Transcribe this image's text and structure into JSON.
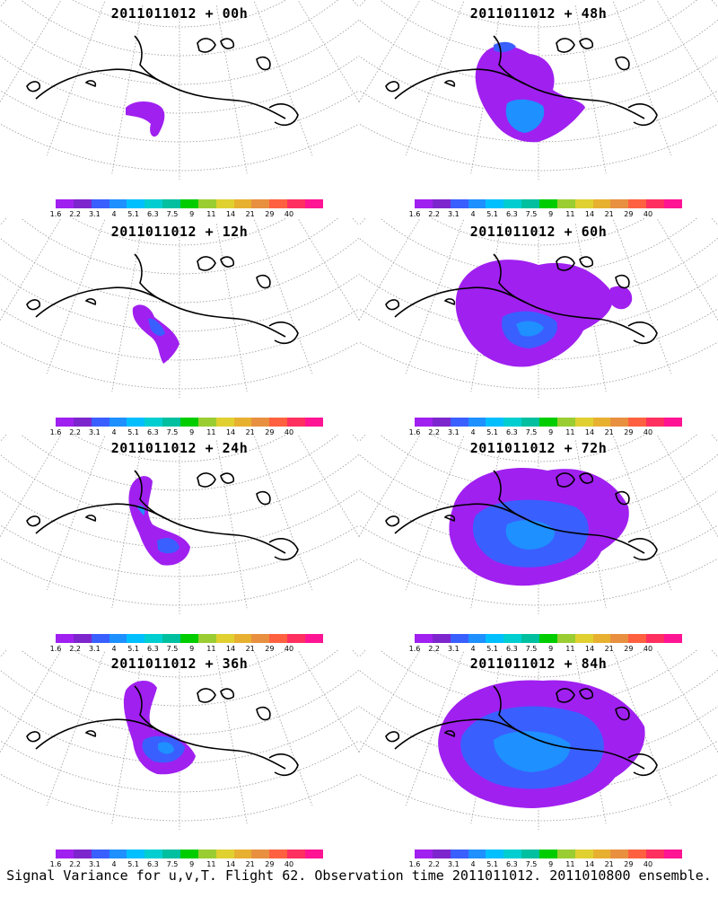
{
  "caption": "Signal Variance for u,v,T. Flight 62. Observation time 2011011012. 2011010800 ensemble.",
  "chart_data": {
    "type": "heatmap",
    "description_units": "signal variance",
    "colorbar": {
      "levels": [
        "1.6",
        "2.2",
        "3.1",
        "4",
        "5.1",
        "6.3",
        "7.5",
        "9",
        "11",
        "14",
        "21",
        "29",
        "40"
      ],
      "colors": [
        "#a020f0",
        "#7d26cd",
        "#3a5fff",
        "#1e90ff",
        "#00bfff",
        "#00ced1",
        "#00c0a0",
        "#00cd00",
        "#9acd32",
        "#e0d030",
        "#e8b030",
        "#e89040",
        "#ff6040",
        "#ff3060",
        "#ff1493"
      ]
    },
    "panels": [
      {
        "title": "2011011012 + 00h",
        "forecast_hour": 0
      },
      {
        "title": "2011011012 + 48h",
        "forecast_hour": 48
      },
      {
        "title": "2011011012 + 12h",
        "forecast_hour": 12
      },
      {
        "title": "2011011012 + 60h",
        "forecast_hour": 60
      },
      {
        "title": "2011011012 + 24h",
        "forecast_hour": 24
      },
      {
        "title": "2011011012 + 72h",
        "forecast_hour": 72
      },
      {
        "title": "2011011012 + 36h",
        "forecast_hour": 36
      },
      {
        "title": "2011011012 + 84h",
        "forecast_hour": 84
      }
    ]
  }
}
